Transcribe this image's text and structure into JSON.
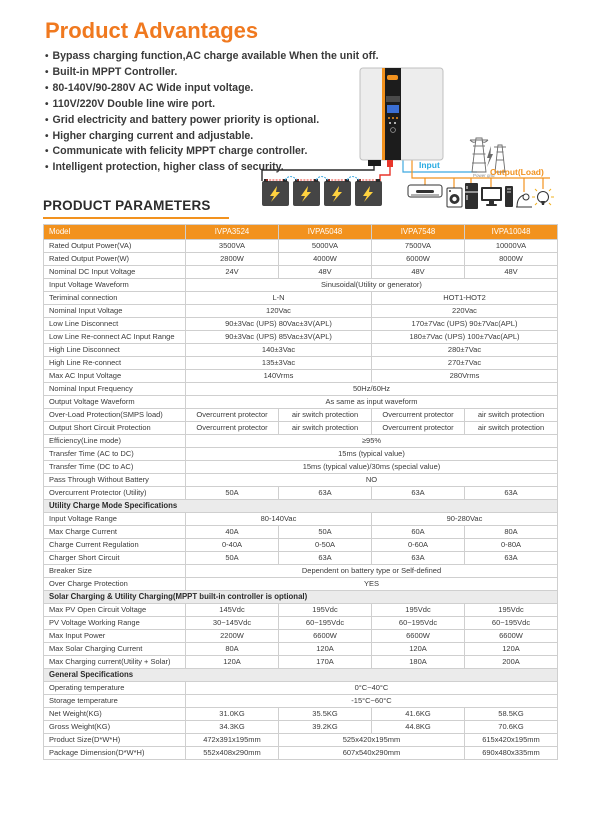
{
  "colors": {
    "accent_orange": "#F2921E",
    "title_orange": "#F0791F",
    "section_gray": "#EBEBEB",
    "table_border": "#CFCFCF",
    "text_dark": "#3A3A3A",
    "input_blue": "#29ABE2",
    "wire_red": "#E8352A",
    "wire_black": "#2B2B2B",
    "battery_bolt_yellow": "#FFD23F"
  },
  "advantages": {
    "title": "Product Advantages",
    "items": [
      "Bypass charging function,AC charge available When the unit off.",
      "Built-in MPPT Controller.",
      "80-140V/90-280V AC Wide input voltage.",
      "110V/220V Double line wire port.",
      "Grid electricity and battery power priority is optional.",
      "Higher charging current and adjustable.",
      "Communicate with felicity MPPT charge controller.",
      "Intelligent protection, higher class of security."
    ]
  },
  "diagram": {
    "input_label": "Input",
    "output_label": "Output(Load)",
    "power_grid_label": "Power grid"
  },
  "parameters": {
    "title": "PRODUCT PARAMETERS",
    "header": [
      "Model",
      "IVPA3524",
      "IVPA5048",
      "IVPA7548",
      "IVPA10048"
    ],
    "rows": [
      {
        "label": "Rated Output Power(VA)",
        "cells": [
          "3500VA",
          "5000VA",
          "7500VA",
          "10000VA"
        ]
      },
      {
        "label": "Rated Output Power(W)",
        "cells": [
          "2800W",
          "4000W",
          "6000W",
          "8000W"
        ]
      },
      {
        "label": "Nominal DC Input Voltage",
        "cells": [
          "24V",
          "48V",
          "48V",
          "48V"
        ]
      },
      {
        "label": "Input Voltage Waveform",
        "cells": [
          "Sinusoidal(Utility or generator)"
        ],
        "spans": [
          4
        ]
      },
      {
        "label": "Teriminal connection",
        "cells": [
          "L-N",
          "HOT1-HOT2"
        ],
        "spans": [
          2,
          2
        ]
      },
      {
        "label": "Nominal Input Voltage",
        "cells": [
          "120Vac",
          "220Vac"
        ],
        "spans": [
          2,
          2
        ]
      },
      {
        "label": "Low Line Disconnect",
        "cells": [
          "90±3Vac (UPS) 80Vac±3V(APL)",
          "170±7Vac (UPS) 90±7Vac(APL)"
        ],
        "spans": [
          2,
          2
        ]
      },
      {
        "label": "Low Line Re-connect AC Input Range",
        "cells": [
          "90±3Vac (UPS) 85Vac±3V(APL)",
          "180±7Vac (UPS) 100±7Vac(APL)"
        ],
        "spans": [
          2,
          2
        ]
      },
      {
        "label": "High Line Disconnect",
        "cells": [
          "140±3Vac",
          "280±7Vac"
        ],
        "spans": [
          2,
          2
        ]
      },
      {
        "label": "High Line Re-connect",
        "cells": [
          "135±3Vac",
          "270±7Vac"
        ],
        "spans": [
          2,
          2
        ]
      },
      {
        "label": "Max AC Input Voltage",
        "cells": [
          "140Vrms",
          "280Vrms"
        ],
        "spans": [
          2,
          2
        ]
      },
      {
        "label": "Nominal Input Frequency",
        "cells": [
          "50Hz/60Hz"
        ],
        "spans": [
          4
        ]
      },
      {
        "label": "Output Voltage Waveform",
        "cells": [
          "As same as input waveform"
        ],
        "spans": [
          4
        ]
      },
      {
        "label": "Over-Load Protection(SMPS load)",
        "cells": [
          "Overcurrent protector",
          "air switch protection",
          "Overcurrent protector",
          "air switch protection"
        ]
      },
      {
        "label": "Output Short Circuit Protection",
        "cells": [
          "Overcurrent protector",
          "air switch protection",
          "Overcurrent protector",
          "air switch protection"
        ]
      },
      {
        "label": "Efficiency(Line mode)",
        "cells": [
          "≥95%"
        ],
        "spans": [
          4
        ]
      },
      {
        "label": "Transfer Time (AC to DC)",
        "cells": [
          "15ms (typical value)"
        ],
        "spans": [
          4
        ]
      },
      {
        "label": "Transfer Time (DC to AC)",
        "cells": [
          "15ms (typical value)/30ms (special value)"
        ],
        "spans": [
          4
        ]
      },
      {
        "label": "Pass Through Without Battery",
        "cells": [
          "NO"
        ],
        "spans": [
          4
        ]
      },
      {
        "label": "Overcurrent Protector (Utility)",
        "cells": [
          "50A",
          "63A",
          "63A",
          "63A"
        ]
      },
      {
        "section": "Utility Charge Mode Specifications"
      },
      {
        "label": "Input Voltage Range",
        "cells": [
          "80-140Vac",
          "90-280Vac"
        ],
        "spans": [
          2,
          2
        ]
      },
      {
        "label": "Max Charge Current",
        "cells": [
          "40A",
          "50A",
          "60A",
          "80A"
        ]
      },
      {
        "label": "Charge Current Regulation",
        "cells": [
          "0-40A",
          "0-50A",
          "0-60A",
          "0-80A"
        ]
      },
      {
        "label": "Charger Short Circuit",
        "cells": [
          "50A",
          "63A",
          "63A",
          "63A"
        ]
      },
      {
        "label": "Breaker Size",
        "cells": [
          "Dependent on battery type or Self-defined"
        ],
        "spans": [
          4
        ]
      },
      {
        "label": "Over Charge Protection",
        "cells": [
          "YES"
        ],
        "spans": [
          4
        ]
      },
      {
        "section": "Solar Charging & Utility Charging(MPPT built-in controller is optional)"
      },
      {
        "label": "Max PV Open Circuit Voltage",
        "cells": [
          "145Vdc",
          "195Vdc",
          "195Vdc",
          "195Vdc"
        ]
      },
      {
        "label": "PV Voltage Working Range",
        "cells": [
          "30~145Vdc",
          "60~195Vdc",
          "60~195Vdc",
          "60~195Vdc"
        ]
      },
      {
        "label": "Max Input Power",
        "cells": [
          "2200W",
          "6600W",
          "6600W",
          "6600W"
        ]
      },
      {
        "label": "Max Solar Charging Current",
        "cells": [
          "80A",
          "120A",
          "120A",
          "120A"
        ]
      },
      {
        "label": "Max Charging current(Utility + Solar)",
        "cells": [
          "120A",
          "170A",
          "180A",
          "200A"
        ]
      },
      {
        "section": "General Specifications"
      },
      {
        "label": "Operating temperature",
        "cells": [
          "0°C~40°C"
        ],
        "spans": [
          4
        ]
      },
      {
        "label": "Storage temperature",
        "cells": [
          "-15°C~60°C"
        ],
        "spans": [
          4
        ]
      },
      {
        "label": "Net Weight(KG)",
        "cells": [
          "31.0KG",
          "35.5KG",
          "41.6KG",
          "58.5KG"
        ]
      },
      {
        "label": "Gross Weight(KG)",
        "cells": [
          "34.3KG",
          "39.2KG",
          "44.8KG",
          "70.6KG"
        ]
      },
      {
        "label": "Product Size(D*W*H)",
        "cells": [
          "472x391x195mm",
          "525x420x195mm",
          "615x420x195mm"
        ],
        "spans": [
          1,
          2,
          1
        ]
      },
      {
        "label": "Package Dimension(D*W*H)",
        "cells": [
          "552x408x290mm",
          "607x540x290mm",
          "690x480x335mm"
        ],
        "spans": [
          1,
          2,
          1
        ]
      }
    ]
  }
}
